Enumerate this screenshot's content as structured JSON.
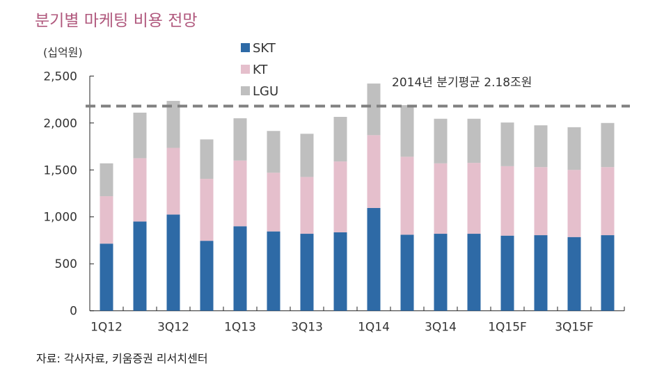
{
  "chart_data": {
    "type": "bar",
    "stacked": true,
    "title": "분기별 마케팅 비용 전망",
    "ylabel": "(십억원)",
    "xlabel": "",
    "ylim": [
      0,
      2500
    ],
    "yticks": [
      "0",
      "500",
      "1,000",
      "1,500",
      "2,000",
      "2,500"
    ],
    "ytick_values": [
      0,
      500,
      1000,
      1500,
      2000,
      2500
    ],
    "categories": [
      "1Q12",
      "2Q12",
      "3Q12",
      "4Q12",
      "1Q13",
      "2Q13",
      "3Q13",
      "4Q13",
      "1Q14",
      "2Q14",
      "3Q14",
      "4Q14",
      "1Q15F",
      "2Q15F",
      "3Q15F",
      "4Q15F"
    ],
    "xtick_labels": [
      "1Q12",
      "",
      "3Q12",
      "",
      "1Q13",
      "",
      "3Q13",
      "",
      "1Q14",
      "",
      "3Q14",
      "",
      "1Q15F",
      "",
      "3Q15F",
      ""
    ],
    "series": [
      {
        "name": "SKT",
        "color": "#2e6aa6",
        "values": [
          715,
          950,
          1025,
          745,
          900,
          845,
          820,
          835,
          1095,
          810,
          820,
          820,
          800,
          805,
          785,
          805
        ]
      },
      {
        "name": "KT",
        "color": "#e5bfcc",
        "values": [
          505,
          675,
          710,
          660,
          700,
          625,
          605,
          755,
          775,
          830,
          750,
          755,
          740,
          725,
          715,
          725
        ]
      },
      {
        "name": "LGU",
        "color": "#bfbfbf",
        "values": [
          350,
          485,
          500,
          420,
          450,
          445,
          460,
          475,
          550,
          550,
          475,
          470,
          465,
          445,
          455,
          470
        ]
      }
    ],
    "reference_line": {
      "value": 2180,
      "label": "2014년 분기평균 2.18조원",
      "color": "#808080",
      "style": "dashed"
    },
    "legend": "top-center",
    "grid": false
  },
  "source": "자료: 각사자료, 키움증권 리서치센터"
}
